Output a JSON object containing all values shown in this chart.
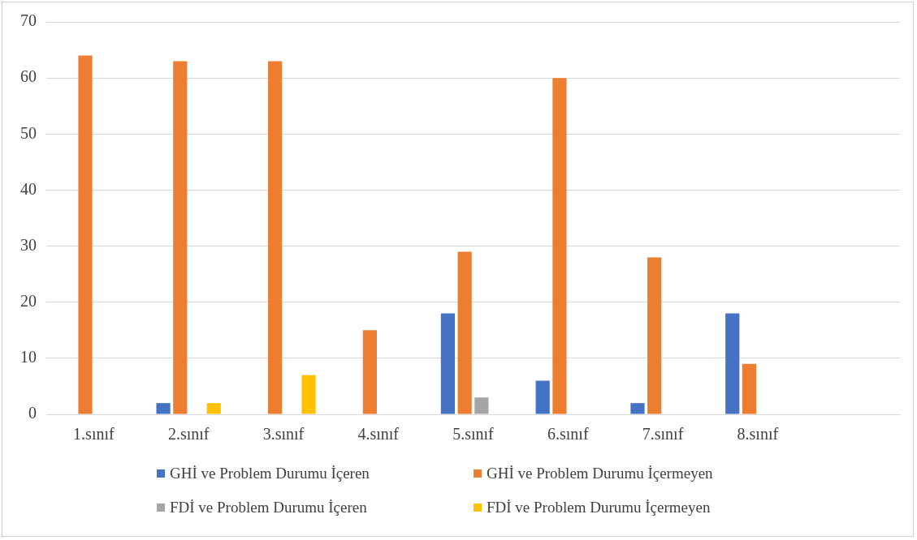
{
  "chart_data": {
    "type": "bar",
    "categories": [
      "1.sınıf",
      "2.sınıf",
      "3.sınıf",
      "4.sınıf",
      "5.sınıf",
      "6.sınıf",
      "7.sınıf",
      "8.sınıf",
      null
    ],
    "series": [
      {
        "name": "GHİ ve Problem Durumu İçeren",
        "color": "#4472c4",
        "values": [
          0,
          2,
          0,
          0,
          18,
          6,
          2,
          18,
          null
        ]
      },
      {
        "name": "GHİ ve Problem Durumu İçermeyen",
        "color": "#ed7d31",
        "values": [
          64,
          63,
          63,
          15,
          29,
          60,
          28,
          9,
          null
        ]
      },
      {
        "name": "FDİ ve Problem Durumu İçeren",
        "color": "#a5a5a5",
        "values": [
          0,
          0,
          0,
          0,
          3,
          0,
          0,
          0,
          null
        ]
      },
      {
        "name": "FDİ ve Problem Durumu İçermeyen",
        "color": "#ffc000",
        "values": [
          0,
          2,
          7,
          0,
          0,
          0,
          0,
          0,
          null
        ]
      }
    ],
    "ylim": [
      0,
      70
    ],
    "yticks": [
      0,
      10,
      20,
      30,
      40,
      50,
      60,
      70
    ],
    "grid": "y",
    "legend": "bottom"
  }
}
